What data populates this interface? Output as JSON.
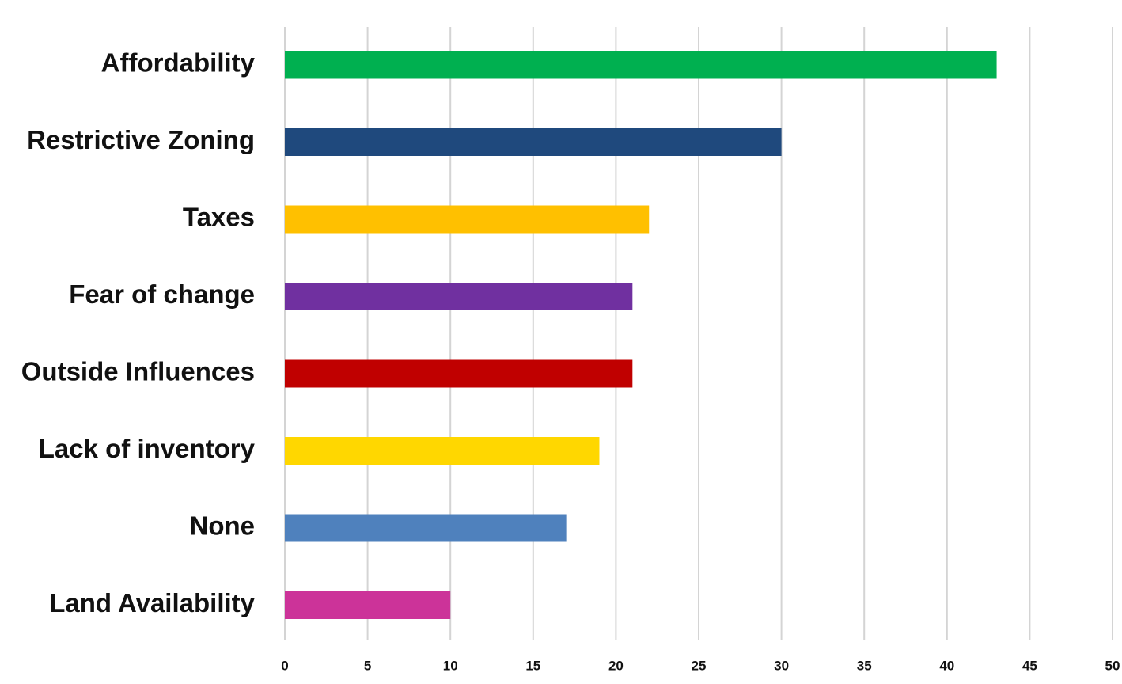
{
  "chart_data": {
    "type": "bar",
    "orientation": "horizontal",
    "title": "",
    "xlabel": "",
    "ylabel": "",
    "categories": [
      "Affordability",
      "Restrictive Zoning",
      "Taxes",
      "Fear of change",
      "Outside Influences",
      "Lack of inventory",
      "None",
      "Land Availability"
    ],
    "values": [
      43,
      30,
      22,
      21,
      21,
      19,
      17,
      10
    ],
    "colors": [
      "#00b050",
      "#1f497d",
      "#ffc000",
      "#7030a0",
      "#c00000",
      "#ffd700",
      "#4f81bd",
      "#cc3399"
    ],
    "xlim": [
      0,
      50
    ],
    "xticks": [
      0,
      5,
      10,
      15,
      20,
      25,
      30,
      35,
      40,
      45,
      50
    ],
    "grid": "vertical",
    "legend": "none"
  }
}
